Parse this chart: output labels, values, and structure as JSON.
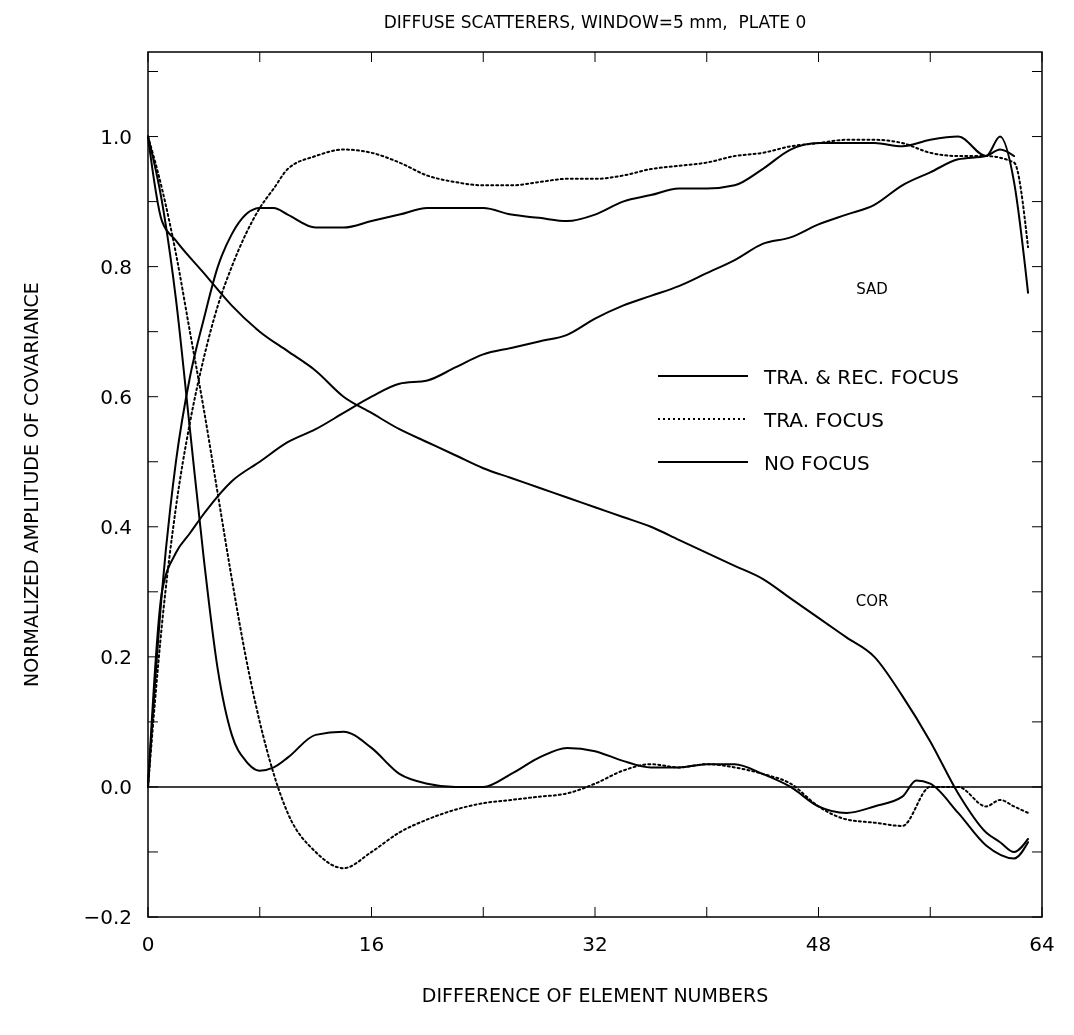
{
  "chart_data": {
    "type": "line",
    "title": "DIFFUSE SCATTERERS, WINDOW=5 mm,  PLATE 0",
    "xlabel": "DIFFERENCE OF ELEMENT NUMBERS",
    "ylabel": "NORMALIZED AMPLITUDE OF COVARIANCE",
    "xlim": [
      0,
      64
    ],
    "xticks": [
      0,
      {
        "value": 8,
        "label": null
      },
      16,
      {
        "value": 24,
        "label": null
      },
      32,
      {
        "value": 40,
        "label": null
      },
      48,
      {
        "value": 56,
        "label": null
      },
      64
    ],
    "ylim": [
      -0.2,
      1.13
    ],
    "yticks": [
      {
        "value": -0.2,
        "label": "−0.2"
      },
      {
        "value": -0.1,
        "label": null
      },
      {
        "value": 0,
        "label": "0.0"
      },
      {
        "value": 0.1,
        "label": null
      },
      {
        "value": 0.2,
        "label": "0.2"
      },
      {
        "value": 0.3,
        "label": null
      },
      {
        "value": 0.4,
        "label": "0.4"
      },
      {
        "value": 0.5,
        "label": null
      },
      {
        "value": 0.6,
        "label": "0.6"
      },
      {
        "value": 0.7,
        "label": null
      },
      {
        "value": 0.8,
        "label": "0.8"
      },
      {
        "value": 0.9,
        "label": null
      },
      {
        "value": 1.0,
        "label": "1.0"
      },
      {
        "value": 1.1,
        "label": null
      }
    ],
    "grid": false,
    "legend": "right",
    "marker": "none",
    "ref_lines": [
      {
        "axis": "y",
        "value": 0,
        "color": "#000000"
      }
    ],
    "annotations": [
      "SAD",
      "COR"
    ],
    "series": [
      {
        "name": "TRA. & REC. FOCUS",
        "color": "#000000",
        "line_style": "solid",
        "x": [
          0,
          1,
          2,
          3,
          4,
          5,
          6,
          7,
          8,
          9,
          10,
          12,
          14,
          16,
          18,
          20,
          22,
          24,
          26,
          28,
          30,
          32,
          34,
          36,
          38,
          40,
          42,
          44,
          46,
          48,
          50,
          52,
          54,
          56,
          58,
          60,
          61,
          62,
          63
        ],
        "values": [
          0,
          0.3,
          0.5,
          0.63,
          0.72,
          0.8,
          0.85,
          0.88,
          0.89,
          0.89,
          0.88,
          0.86,
          0.86,
          0.87,
          0.88,
          0.89,
          0.89,
          0.89,
          0.88,
          0.875,
          0.87,
          0.88,
          0.9,
          0.91,
          0.92,
          0.92,
          0.925,
          0.95,
          0.98,
          0.99,
          0.99,
          0.99,
          0.985,
          0.995,
          1.0,
          0.97,
          1.0,
          0.93,
          0.76
        ]
      },
      {
        "name": "TRA. FOCUS",
        "color": "#000000",
        "line_style": "dotted",
        "x": [
          0,
          1,
          2,
          3,
          4,
          5,
          6,
          7,
          8,
          9,
          10,
          12,
          14,
          16,
          18,
          20,
          22,
          24,
          26,
          28,
          30,
          32,
          34,
          36,
          38,
          40,
          42,
          44,
          46,
          48,
          50,
          52,
          54,
          56,
          58,
          60,
          62,
          63
        ],
        "values": [
          0,
          0.25,
          0.43,
          0.56,
          0.66,
          0.74,
          0.8,
          0.85,
          0.89,
          0.92,
          0.95,
          0.97,
          0.98,
          0.975,
          0.96,
          0.94,
          0.93,
          0.925,
          0.925,
          0.93,
          0.935,
          0.935,
          0.94,
          0.95,
          0.955,
          0.96,
          0.97,
          0.975,
          0.985,
          0.99,
          0.995,
          0.995,
          0.99,
          0.975,
          0.97,
          0.97,
          0.96,
          0.83
        ]
      },
      {
        "name": "NO FOCUS",
        "color": "#000000",
        "line_style": "solid",
        "x": [
          0,
          1,
          2,
          3,
          4,
          6,
          8,
          10,
          12,
          14,
          16,
          18,
          20,
          22,
          24,
          26,
          28,
          30,
          32,
          34,
          36,
          38,
          40,
          42,
          44,
          46,
          48,
          50,
          52,
          54,
          56,
          58,
          60,
          61,
          62
        ],
        "values": [
          0,
          0.3,
          0.36,
          0.39,
          0.42,
          0.47,
          0.5,
          0.53,
          0.55,
          0.575,
          0.6,
          0.62,
          0.625,
          0.645,
          0.665,
          0.675,
          0.685,
          0.695,
          0.72,
          0.74,
          0.755,
          0.77,
          0.79,
          0.81,
          0.835,
          0.845,
          0.865,
          0.88,
          0.895,
          0.925,
          0.945,
          0.965,
          0.97,
          0.98,
          0.97
        ]
      },
      {
        "color": "#000000",
        "line_style": "solid",
        "x": [
          0,
          1,
          2,
          3,
          4,
          5,
          6,
          7,
          8,
          9,
          10,
          12,
          14,
          16,
          18,
          20,
          22,
          24,
          26,
          28,
          30,
          32,
          34,
          36,
          38,
          40,
          42,
          44,
          46,
          48,
          50,
          52,
          54,
          55,
          56,
          58,
          60,
          62,
          63
        ],
        "values": [
          1.0,
          0.9,
          0.75,
          0.55,
          0.35,
          0.18,
          0.08,
          0.04,
          0.025,
          0.03,
          0.045,
          0.08,
          0.085,
          0.06,
          0.02,
          0.005,
          0.0,
          0.0,
          0.02,
          0.045,
          0.06,
          0.055,
          0.04,
          0.03,
          0.03,
          0.035,
          0.035,
          0.02,
          0.0,
          -0.03,
          -0.04,
          -0.03,
          -0.015,
          0.01,
          0.005,
          -0.04,
          -0.09,
          -0.11,
          -0.085
        ]
      },
      {
        "color": "#000000",
        "line_style": "dotted",
        "x": [
          0,
          1,
          2,
          3,
          4,
          5,
          6,
          7,
          8,
          9,
          10,
          12,
          14,
          16,
          18,
          20,
          22,
          24,
          26,
          28,
          30,
          32,
          34,
          36,
          38,
          40,
          42,
          44,
          46,
          48,
          50,
          52,
          54,
          56,
          58,
          60,
          61,
          62,
          63
        ],
        "values": [
          1.0,
          0.92,
          0.82,
          0.7,
          0.58,
          0.45,
          0.32,
          0.2,
          0.1,
          0.02,
          -0.04,
          -0.1,
          -0.125,
          -0.1,
          -0.07,
          -0.05,
          -0.035,
          -0.025,
          -0.02,
          -0.015,
          -0.01,
          0.005,
          0.025,
          0.035,
          0.03,
          0.035,
          0.03,
          0.02,
          0.005,
          -0.03,
          -0.05,
          -0.055,
          -0.06,
          0.0,
          0.0,
          -0.03,
          -0.02,
          -0.03,
          -0.04
        ]
      },
      {
        "color": "#000000",
        "line_style": "solid",
        "x": [
          0,
          1,
          2,
          4,
          6,
          8,
          10,
          12,
          14,
          16,
          18,
          20,
          22,
          24,
          26,
          28,
          30,
          32,
          34,
          36,
          38,
          40,
          42,
          44,
          46,
          48,
          50,
          52,
          54,
          56,
          58,
          60,
          61,
          62,
          63
        ],
        "values": [
          1.0,
          0.87,
          0.84,
          0.79,
          0.74,
          0.7,
          0.67,
          0.64,
          0.6,
          0.575,
          0.55,
          0.53,
          0.51,
          0.49,
          0.475,
          0.46,
          0.445,
          0.43,
          0.415,
          0.4,
          0.38,
          0.36,
          0.34,
          0.32,
          0.29,
          0.26,
          0.23,
          0.2,
          0.14,
          0.07,
          -0.01,
          -0.07,
          -0.085,
          -0.1,
          -0.08
        ]
      }
    ]
  }
}
